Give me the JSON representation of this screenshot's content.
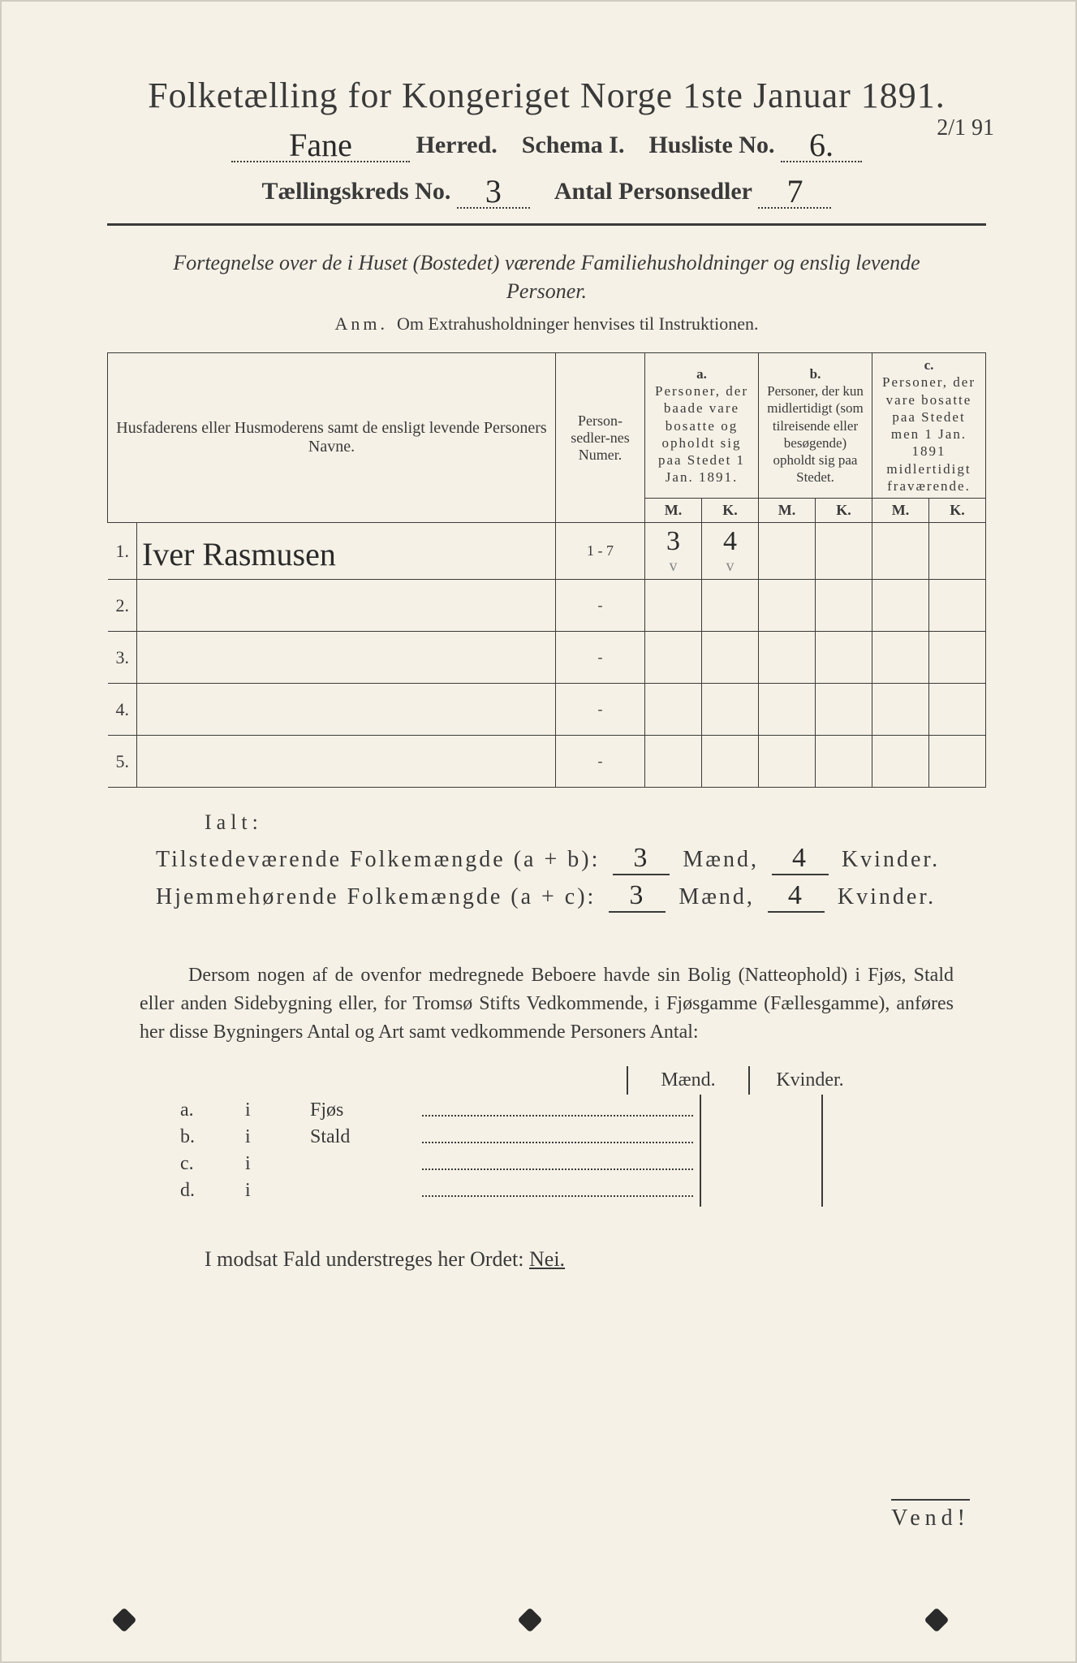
{
  "title": "Folketælling for Kongeriget Norge 1ste Januar 1891.",
  "header": {
    "herred_value": "Fane",
    "herred_label": "Herred.",
    "schema_label": "Schema I.",
    "husliste_label": "Husliste No.",
    "husliste_value": "6.",
    "kreds_label": "Tællingskreds No.",
    "kreds_value": "3",
    "antal_label": "Antal Personsedler",
    "antal_value": "7",
    "corner_date": "2/1 91"
  },
  "fortegnelse": "Fortegnelse over de i Huset (Bostedet) værende Familiehusholdninger og enslig levende Personer.",
  "anm_label": "Anm.",
  "anm_text": "Om Extrahusholdninger henvises til Instruktionen.",
  "table": {
    "col_names": "Husfaderens eller Husmoderens samt de ensligt levende Personers Navne.",
    "col_nummer": "Person-sedler-nes Numer.",
    "col_a_label": "a.",
    "col_a": "Personer, der baade vare bosatte og opholdt sig paa Stedet 1 Jan. 1891.",
    "col_b_label": "b.",
    "col_b": "Personer, der kun midlertidigt (som tilreisende eller besøgende) opholdt sig paa Stedet.",
    "col_c_label": "c.",
    "col_c": "Personer, der vare bosatte paa Stedet men 1 Jan. 1891 midlertidigt fraværende.",
    "mk_m": "M.",
    "mk_k": "K.",
    "rows": [
      {
        "n": "1.",
        "name": "Iver Rasmusen",
        "numer": "1 - 7",
        "a_m": "3",
        "a_k": "4",
        "b_m": "",
        "b_k": "",
        "c_m": "",
        "c_k": ""
      },
      {
        "n": "2.",
        "name": "",
        "numer": "-",
        "a_m": "",
        "a_k": "",
        "b_m": "",
        "b_k": "",
        "c_m": "",
        "c_k": ""
      },
      {
        "n": "3.",
        "name": "",
        "numer": "-",
        "a_m": "",
        "a_k": "",
        "b_m": "",
        "b_k": "",
        "c_m": "",
        "c_k": ""
      },
      {
        "n": "4.",
        "name": "",
        "numer": "-",
        "a_m": "",
        "a_k": "",
        "b_m": "",
        "b_k": "",
        "c_m": "",
        "c_k": ""
      },
      {
        "n": "5.",
        "name": "",
        "numer": "-",
        "a_m": "",
        "a_k": "",
        "b_m": "",
        "b_k": "",
        "c_m": "",
        "c_k": ""
      }
    ],
    "check": "v"
  },
  "ialt": "Ialt:",
  "sum1": {
    "label": "Tilstedeværende Folkemængde (a + b):",
    "m": "3",
    "m_lbl": "Mænd,",
    "k": "4",
    "k_lbl": "Kvinder."
  },
  "sum2": {
    "label": "Hjemmehørende Folkemængde (a + c):",
    "m": "3",
    "m_lbl": "Mænd,",
    "k": "4",
    "k_lbl": "Kvinder."
  },
  "dersom": "Dersom nogen af de ovenfor medregnede Beboere havde sin Bolig (Natteophold) i Fjøs, Stald eller anden Sidebygning eller, for Tromsø Stifts Vedkommende, i Fjøsgamme (Fællesgamme), anføres her disse Bygningers Antal og Art samt vedkommende Personers Antal:",
  "side": {
    "maend": "Mænd.",
    "kvinder": "Kvinder.",
    "rows": [
      {
        "a": "a.",
        "i": "i",
        "label": "Fjøs"
      },
      {
        "a": "b.",
        "i": "i",
        "label": "Stald"
      },
      {
        "a": "c.",
        "i": "i",
        "label": ""
      },
      {
        "a": "d.",
        "i": "i",
        "label": ""
      }
    ]
  },
  "modsat": "I modsat Fald understreges her Ordet:",
  "nei": "Nei.",
  "vend": "Vend!",
  "colors": {
    "paper": "#f5f1e6",
    "ink": "#3a3a3a",
    "handwriting": "#2a2a2a"
  }
}
